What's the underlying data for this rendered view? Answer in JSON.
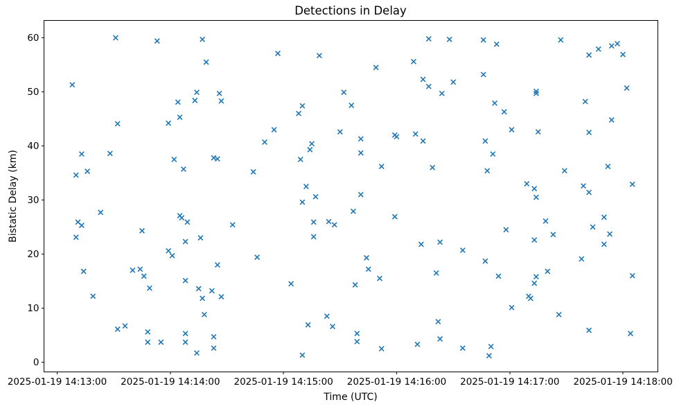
{
  "chart_data": {
    "type": "scatter",
    "title": "Detections in Delay",
    "xlabel": "Time (UTC)",
    "ylabel": "Bistatic Delay (km)",
    "date": "2025-01-19",
    "marker": "x",
    "marker_color": "#1f77b4",
    "background_color": "#ffffff",
    "grid": false,
    "legend": false,
    "x_axis": {
      "ticks": [
        {
          "label": "2025-01-19 14:13:00",
          "seconds": 0
        },
        {
          "label": "2025-01-19 14:14:00",
          "seconds": 60
        },
        {
          "label": "2025-01-19 14:15:00",
          "seconds": 120
        },
        {
          "label": "2025-01-19 14:16:00",
          "seconds": 180
        },
        {
          "label": "2025-01-19 14:17:00",
          "seconds": 240
        },
        {
          "label": "2025-01-19 14:18:00",
          "seconds": 300
        }
      ],
      "range_seconds": [
        -7,
        318.5
      ],
      "reference_time": "14:13:00"
    },
    "y_axis": {
      "ticks": [
        0,
        10,
        20,
        30,
        40,
        50,
        60
      ],
      "range": [
        -1.8,
        63.2
      ]
    },
    "points": [
      [
        "14:13:31",
        60.0
      ],
      [
        "14:13:53",
        59.4
      ],
      [
        "14:14:17",
        59.7
      ],
      [
        "14:14:19",
        55.5
      ],
      [
        "14:13:08",
        51.3
      ],
      [
        "14:14:14",
        49.9
      ],
      [
        "14:14:26",
        49.7
      ],
      [
        "14:14:13",
        48.4
      ],
      [
        "14:14:27",
        48.3
      ],
      [
        "14:14:04",
        48.1
      ],
      [
        "14:14:05",
        45.3
      ],
      [
        "14:13:59",
        44.2
      ],
      [
        "14:13:32",
        44.1
      ],
      [
        "14:16:17",
        59.8
      ],
      [
        "14:16:28",
        59.7
      ],
      [
        "14:14:57",
        57.1
      ],
      [
        "14:15:19",
        56.7
      ],
      [
        "14:15:49",
        54.5
      ],
      [
        "14:16:09",
        55.6
      ],
      [
        "14:16:14",
        52.3
      ],
      [
        "14:16:17",
        51.0
      ],
      [
        "14:16:24",
        49.7
      ],
      [
        "14:15:32",
        49.9
      ],
      [
        "14:15:36",
        47.5
      ],
      [
        "14:15:10",
        47.4
      ],
      [
        "14:15:08",
        46.0
      ],
      [
        "14:14:55",
        43.0
      ],
      [
        "14:15:30",
        42.6
      ],
      [
        "14:15:59",
        42.0
      ],
      [
        "14:16:00",
        41.7
      ],
      [
        "14:16:10",
        42.2
      ],
      [
        "14:16:14",
        40.9
      ],
      [
        "14:15:41",
        41.3
      ],
      [
        "14:16:46",
        59.6
      ],
      [
        "14:16:53",
        58.8
      ],
      [
        "14:17:27",
        59.6
      ],
      [
        "14:17:42",
        56.8
      ],
      [
        "14:17:47",
        57.9
      ],
      [
        "14:17:54",
        58.5
      ],
      [
        "14:17:57",
        58.9
      ],
      [
        "14:18:00",
        56.9
      ],
      [
        "14:16:46",
        53.2
      ],
      [
        "14:16:30",
        51.8
      ],
      [
        "14:17:14",
        50.1
      ],
      [
        "14:17:14",
        49.7
      ],
      [
        "14:18:02",
        50.7
      ],
      [
        "14:17:40",
        48.2
      ],
      [
        "14:16:52",
        47.9
      ],
      [
        "14:16:57",
        46.3
      ],
      [
        "14:17:54",
        44.8
      ],
      [
        "14:17:01",
        43.0
      ],
      [
        "14:17:15",
        42.6
      ],
      [
        "14:17:42",
        42.5
      ],
      [
        "14:13:13",
        38.5
      ],
      [
        "14:13:28",
        38.6
      ],
      [
        "14:14:02",
        37.5
      ],
      [
        "14:14:23",
        37.8
      ],
      [
        "14:14:25",
        37.6
      ],
      [
        "14:14:07",
        35.7
      ],
      [
        "14:13:16",
        35.3
      ],
      [
        "14:13:10",
        34.6
      ],
      [
        "14:13:23",
        27.7
      ],
      [
        "14:14:05",
        27.1
      ],
      [
        "14:14:06",
        26.7
      ],
      [
        "14:14:09",
        25.9
      ],
      [
        "14:13:11",
        25.9
      ],
      [
        "14:13:13",
        25.3
      ],
      [
        "14:13:45",
        24.3
      ],
      [
        "14:14:33",
        25.4
      ],
      [
        "14:13:10",
        23.1
      ],
      [
        "14:14:08",
        22.3
      ],
      [
        "14:14:16",
        23.0
      ],
      [
        "14:13:59",
        20.6
      ],
      [
        "14:14:01",
        19.7
      ],
      [
        "14:14:50",
        40.7
      ],
      [
        "14:15:15",
        40.4
      ],
      [
        "14:15:14",
        39.3
      ],
      [
        "14:15:41",
        38.7
      ],
      [
        "14:15:09",
        37.5
      ],
      [
        "14:15:52",
        36.2
      ],
      [
        "14:16:19",
        36.0
      ],
      [
        "14:14:44",
        35.2
      ],
      [
        "14:15:12",
        32.5
      ],
      [
        "14:15:17",
        30.6
      ],
      [
        "14:15:10",
        29.6
      ],
      [
        "14:15:41",
        31.0
      ],
      [
        "14:15:37",
        27.9
      ],
      [
        "14:15:59",
        26.9
      ],
      [
        "14:15:16",
        25.9
      ],
      [
        "14:15:24",
        26.0
      ],
      [
        "14:15:27",
        25.4
      ],
      [
        "14:15:16",
        23.2
      ],
      [
        "14:16:13",
        21.8
      ],
      [
        "14:16:23",
        22.2
      ],
      [
        "14:16:47",
        40.9
      ],
      [
        "14:16:51",
        38.5
      ],
      [
        "14:16:48",
        35.4
      ],
      [
        "14:17:29",
        35.4
      ],
      [
        "14:17:52",
        36.2
      ],
      [
        "14:17:09",
        33.0
      ],
      [
        "14:17:13",
        32.1
      ],
      [
        "14:17:14",
        30.5
      ],
      [
        "14:17:39",
        32.6
      ],
      [
        "14:17:42",
        31.4
      ],
      [
        "14:18:05",
        32.9
      ],
      [
        "14:17:50",
        26.8
      ],
      [
        "14:17:19",
        26.1
      ],
      [
        "14:17:44",
        25.0
      ],
      [
        "14:16:58",
        24.5
      ],
      [
        "14:17:53",
        23.7
      ],
      [
        "14:17:23",
        23.6
      ],
      [
        "14:17:13",
        22.6
      ],
      [
        "14:17:50",
        21.8
      ],
      [
        "14:16:35",
        20.7
      ],
      [
        "14:13:14",
        16.8
      ],
      [
        "14:13:40",
        17.0
      ],
      [
        "14:13:44",
        17.2
      ],
      [
        "14:13:46",
        15.9
      ],
      [
        "14:13:49",
        13.7
      ],
      [
        "14:13:19",
        12.2
      ],
      [
        "14:14:08",
        15.1
      ],
      [
        "14:14:15",
        13.6
      ],
      [
        "14:14:22",
        13.2
      ],
      [
        "14:14:17",
        11.8
      ],
      [
        "14:14:27",
        12.1
      ],
      [
        "14:14:25",
        18.0
      ],
      [
        "14:14:18",
        8.8
      ],
      [
        "14:13:32",
        6.1
      ],
      [
        "14:13:36",
        6.7
      ],
      [
        "14:13:48",
        5.6
      ],
      [
        "14:13:48",
        3.7
      ],
      [
        "14:13:55",
        3.7
      ],
      [
        "14:14:08",
        5.3
      ],
      [
        "14:14:08",
        3.7
      ],
      [
        "14:14:14",
        1.7
      ],
      [
        "14:14:23",
        4.7
      ],
      [
        "14:14:23",
        2.6
      ],
      [
        "14:14:46",
        19.4
      ],
      [
        "14:15:44",
        19.3
      ],
      [
        "14:15:45",
        17.2
      ],
      [
        "14:15:51",
        15.5
      ],
      [
        "14:15:04",
        14.5
      ],
      [
        "14:15:38",
        14.3
      ],
      [
        "14:16:21",
        16.5
      ],
      [
        "14:15:23",
        8.5
      ],
      [
        "14:15:13",
        6.9
      ],
      [
        "14:15:26",
        6.6
      ],
      [
        "14:15:39",
        5.3
      ],
      [
        "14:15:39",
        3.8
      ],
      [
        "14:15:52",
        2.5
      ],
      [
        "14:15:10",
        1.3
      ],
      [
        "14:16:11",
        3.3
      ],
      [
        "14:16:22",
        7.5
      ],
      [
        "14:16:23",
        4.3
      ],
      [
        "14:16:47",
        18.7
      ],
      [
        "14:16:54",
        15.9
      ],
      [
        "14:17:20",
        16.8
      ],
      [
        "14:17:14",
        15.8
      ],
      [
        "14:17:13",
        14.6
      ],
      [
        "14:17:38",
        19.1
      ],
      [
        "14:18:05",
        16.0
      ],
      [
        "14:17:10",
        12.2
      ],
      [
        "14:17:11",
        11.8
      ],
      [
        "14:17:01",
        10.1
      ],
      [
        "14:17:26",
        8.8
      ],
      [
        "14:17:42",
        5.9
      ],
      [
        "14:18:04",
        5.3
      ],
      [
        "14:16:35",
        2.6
      ],
      [
        "14:16:50",
        2.9
      ],
      [
        "14:16:49",
        1.2
      ]
    ]
  }
}
